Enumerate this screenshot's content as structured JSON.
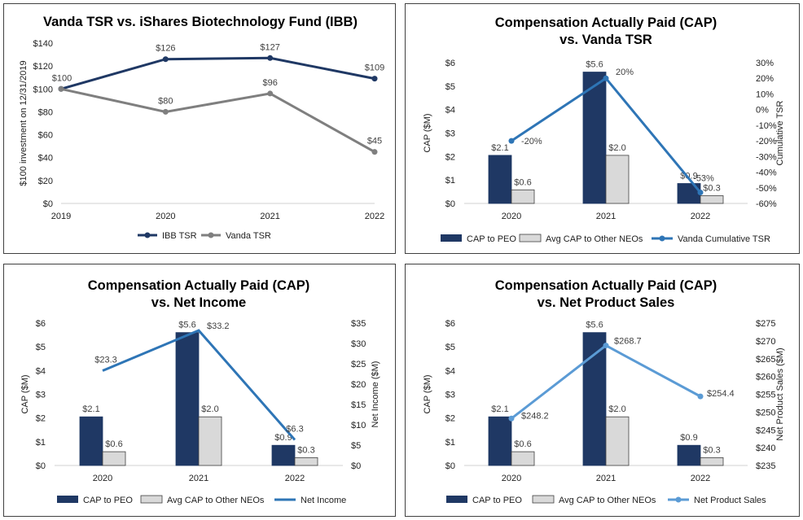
{
  "colors": {
    "peo": "#1f3864",
    "neo": "#d9d9d9",
    "ibb": "#1f3864",
    "vanda": "#7f7f7f",
    "tsr_line": "#2e75b6",
    "ni_line": "#2e75b6",
    "sales_line": "#5b9bd5"
  },
  "chart_data": [
    {
      "type": "line",
      "title": "Vanda TSR vs. iShares Biotechnology Fund (IBB)",
      "categories": [
        "2019",
        "2020",
        "2021",
        "2022"
      ],
      "ylabel": "$100 investment on 12/31/2019",
      "ylim": [
        0,
        140
      ],
      "yticks": [
        "$0",
        "$20",
        "$40",
        "$60",
        "$80",
        "$100",
        "$120",
        "$140"
      ],
      "series": [
        {
          "name": "IBB TSR",
          "values": [
            100,
            126,
            127,
            109
          ],
          "labels": [
            "$100",
            "$126",
            "$127",
            "$109"
          ]
        },
        {
          "name": "Vanda TSR",
          "values": [
            100,
            80,
            96,
            45
          ],
          "labels": [
            "",
            "$80",
            "$96",
            "$45"
          ]
        }
      ]
    },
    {
      "type": "bar+line",
      "title_lines": [
        "Compensation Actually Paid (CAP)",
        "vs. Vanda TSR"
      ],
      "categories": [
        "2020",
        "2021",
        "2022"
      ],
      "ylabel": "CAP ($M)",
      "ylim": [
        0,
        6
      ],
      "yticks": [
        "$0",
        "$1",
        "$2",
        "$3",
        "$4",
        "$5",
        "$6"
      ],
      "y2label": "Cumulative TSR",
      "y2lim": [
        -60,
        30
      ],
      "y2ticks": [
        "-60%",
        "-50%",
        "-40%",
        "-30%",
        "-20%",
        "-10%",
        "0%",
        "10%",
        "20%",
        "30%"
      ],
      "bars": [
        {
          "name": "CAP to PEO",
          "values": [
            2.05,
            5.6,
            0.85
          ],
          "labels": [
            "$2.1",
            "$5.6",
            "$0.9"
          ]
        },
        {
          "name": "Avg CAP to Other NEOs",
          "values": [
            0.58,
            2.05,
            0.33
          ],
          "labels": [
            "$0.6",
            "$2.0",
            "$0.3"
          ]
        }
      ],
      "line": {
        "name": "Vanda Cumulative TSR",
        "values": [
          -20,
          20,
          -53
        ],
        "labels": [
          "-20%",
          "20%",
          "-53%"
        ]
      }
    },
    {
      "type": "bar+line",
      "title_lines": [
        "Compensation Actually Paid (CAP)",
        "vs. Net Income"
      ],
      "categories": [
        "2020",
        "2021",
        "2022"
      ],
      "ylabel": "CAP ($M)",
      "ylim": [
        0,
        6
      ],
      "yticks": [
        "$0",
        "$1",
        "$2",
        "$3",
        "$4",
        "$5",
        "$6"
      ],
      "y2label": "Net Income ($M)",
      "y2lim": [
        0,
        35
      ],
      "y2ticks": [
        "$0",
        "$5",
        "$10",
        "$15",
        "$20",
        "$25",
        "$30",
        "$35"
      ],
      "bars": [
        {
          "name": "CAP to PEO",
          "values": [
            2.05,
            5.6,
            0.85
          ],
          "labels": [
            "$2.1",
            "$5.6",
            "$0.9"
          ]
        },
        {
          "name": "Avg CAP to Other NEOs",
          "values": [
            0.58,
            2.05,
            0.33
          ],
          "labels": [
            "$0.6",
            "$2.0",
            "$0.3"
          ]
        }
      ],
      "line": {
        "name": "Net Income",
        "values": [
          23.3,
          33.2,
          6.3
        ],
        "labels": [
          "$23.3",
          "$33.2",
          "$6.3"
        ]
      }
    },
    {
      "type": "bar+line",
      "title_lines": [
        "Compensation Actually Paid (CAP)",
        "vs. Net Product Sales"
      ],
      "categories": [
        "2020",
        "2021",
        "2022"
      ],
      "ylabel": "CAP ($M)",
      "ylim": [
        0,
        6
      ],
      "yticks": [
        "$0",
        "$1",
        "$2",
        "$3",
        "$4",
        "$5",
        "$6"
      ],
      "y2label": "Net Product Sales ($M)",
      "y2lim": [
        235,
        275
      ],
      "y2ticks": [
        "$235",
        "$240",
        "$245",
        "$250",
        "$255",
        "$260",
        "$265",
        "$270",
        "$275"
      ],
      "bars": [
        {
          "name": "CAP to PEO",
          "values": [
            2.05,
            5.6,
            0.85
          ],
          "labels": [
            "$2.1",
            "$5.6",
            "$0.9"
          ]
        },
        {
          "name": "Avg CAP to Other NEOs",
          "values": [
            0.58,
            2.05,
            0.33
          ],
          "labels": [
            "$0.6",
            "$2.0",
            "$0.3"
          ]
        }
      ],
      "line": {
        "name": "Net Product Sales",
        "values": [
          248.2,
          268.7,
          254.4
        ],
        "labels": [
          "$248.2",
          "$268.7",
          "$254.4"
        ]
      }
    }
  ]
}
